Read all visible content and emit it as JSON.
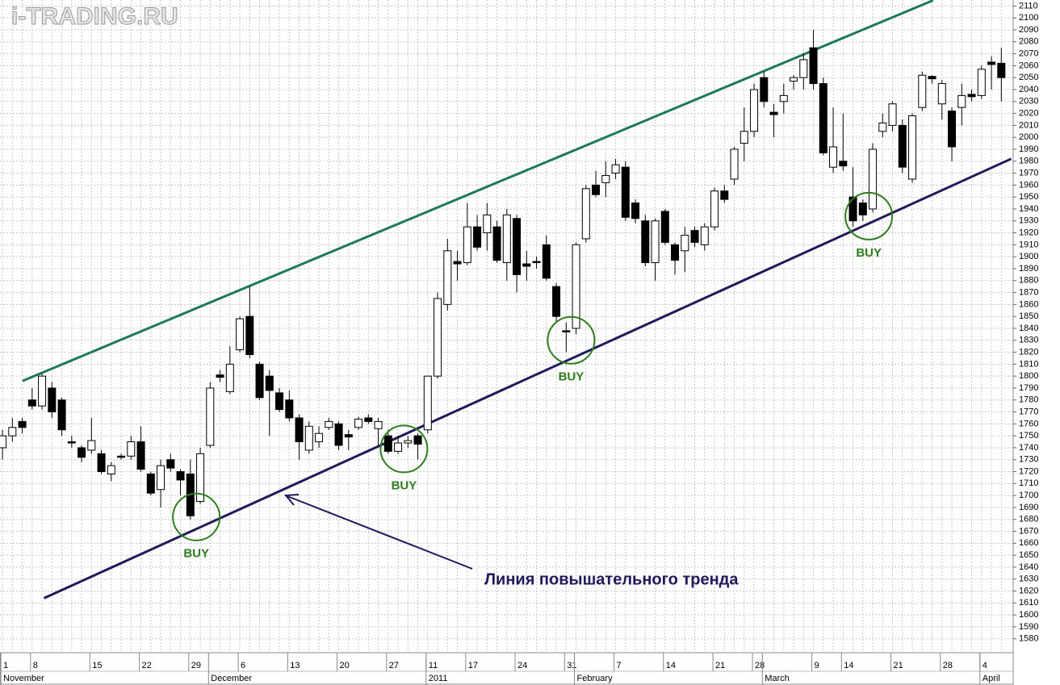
{
  "watermark": "i-TRADING.RU",
  "chart_data": {
    "type": "candlestick",
    "open": [
      1740,
      1750,
      1762,
      1780,
      1775,
      1790,
      1780,
      1745,
      1740,
      1738,
      1735,
      1718,
      1733,
      1733,
      1745,
      1718,
      1705,
      1730,
      1720,
      1718,
      1695,
      1742,
      1801,
      1787,
      1822,
      1850,
      1810,
      1800,
      1786,
      1780,
      1765,
      1738,
      1745,
      1757,
      1760,
      1751,
      1757,
      1765,
      1756,
      1750,
      1737,
      1744,
      1750,
      1755,
      1800,
      1860,
      1896,
      1895,
      1925,
      1920,
      1925,
      1895,
      1932,
      1894,
      1896,
      1910,
      1875,
      1838,
      1840,
      1915,
      1960,
      1962,
      1970,
      1975,
      1945,
      1930,
      1895,
      1938,
      1910,
      1905,
      1922,
      1910,
      1925,
      1955,
      1965,
      1995,
      2005,
      2050,
      2021,
      2030,
      2047,
      2050,
      2075,
      2045,
      1975,
      1980,
      1950,
      1945,
      1940,
      2005,
      2010,
      2010,
      1965,
      2025,
      2051,
      2028,
      2022,
      2025,
      2036,
      2035,
      2063,
      2062
    ],
    "high": [
      1755,
      1765,
      1765,
      1790,
      1802,
      1795,
      1782,
      1750,
      1742,
      1765,
      1738,
      1728,
      1735,
      1750,
      1758,
      1720,
      1730,
      1735,
      1722,
      1730,
      1740,
      1795,
      1805,
      1825,
      1850,
      1875,
      1812,
      1805,
      1790,
      1788,
      1768,
      1762,
      1758,
      1765,
      1762,
      1755,
      1766,
      1768,
      1765,
      1755,
      1750,
      1750,
      1752,
      1800,
      1870,
      1915,
      1905,
      1945,
      1935,
      1945,
      1930,
      1940,
      1935,
      1905,
      1900,
      1918,
      1878,
      1845,
      1912,
      1960,
      1972,
      1980,
      1982,
      1980,
      1948,
      1935,
      1932,
      1940,
      1912,
      1925,
      1925,
      1928,
      1958,
      1960,
      1992,
      2025,
      2045,
      2055,
      2028,
      2045,
      2052,
      2070,
      2090,
      2050,
      2025,
      2020,
      1975,
      1948,
      1995,
      2020,
      2030,
      2015,
      2020,
      2055,
      2052,
      2048,
      2025,
      2045,
      2040,
      2060,
      2068,
      2075
    ],
    "low": [
      1730,
      1745,
      1752,
      1772,
      1772,
      1765,
      1750,
      1740,
      1728,
      1735,
      1718,
      1712,
      1730,
      1730,
      1720,
      1700,
      1690,
      1720,
      1700,
      1680,
      1693,
      1740,
      1795,
      1785,
      1820,
      1815,
      1780,
      1750,
      1770,
      1762,
      1730,
      1735,
      1740,
      1755,
      1738,
      1738,
      1755,
      1760,
      1742,
      1735,
      1735,
      1740,
      1730,
      1752,
      1798,
      1855,
      1880,
      1893,
      1905,
      1905,
      1895,
      1880,
      1870,
      1880,
      1890,
      1880,
      1845,
      1820,
      1835,
      1912,
      1950,
      1950,
      1965,
      1930,
      1928,
      1892,
      1880,
      1910,
      1885,
      1887,
      1908,
      1905,
      1922,
      1945,
      1960,
      1980,
      2000,
      2025,
      2000,
      2020,
      2040,
      2040,
      2040,
      1985,
      1970,
      1972,
      1925,
      1930,
      1937,
      2000,
      2005,
      1970,
      1962,
      2022,
      2045,
      2015,
      1980,
      2010,
      2030,
      2032,
      2040,
      2030
    ],
    "close": [
      1750,
      1757,
      1757,
      1775,
      1800,
      1770,
      1755,
      1744,
      1732,
      1746,
      1720,
      1725,
      1732,
      1745,
      1722,
      1702,
      1725,
      1723,
      1713,
      1683,
      1735,
      1790,
      1799,
      1810,
      1848,
      1818,
      1782,
      1788,
      1772,
      1765,
      1745,
      1758,
      1752,
      1762,
      1742,
      1749,
      1764,
      1762,
      1762,
      1737,
      1744,
      1746,
      1743,
      1800,
      1865,
      1905,
      1894,
      1925,
      1908,
      1935,
      1897,
      1935,
      1885,
      1892,
      1895,
      1882,
      1850,
      1837,
      1910,
      1957,
      1952,
      1968,
      1977,
      1933,
      1932,
      1895,
      1930,
      1912,
      1897,
      1918,
      1912,
      1925,
      1955,
      1948,
      1990,
      2005,
      2040,
      2030,
      2019,
      2035,
      2050,
      2065,
      2045,
      1987,
      1992,
      1976,
      1930,
      1935,
      1990,
      2012,
      2028,
      1975,
      2018,
      2052,
      2049,
      2045,
      1992,
      2035,
      2034,
      2057,
      2061,
      2050
    ],
    "xlim": [
      -0.25,
      102.2
    ],
    "ylim": [
      1569,
      2115
    ],
    "yticks": [
      1580,
      1590,
      1600,
      1610,
      1620,
      1630,
      1640,
      1650,
      1660,
      1670,
      1680,
      1690,
      1700,
      1710,
      1720,
      1730,
      1740,
      1750,
      1760,
      1770,
      1780,
      1790,
      1800,
      1810,
      1820,
      1830,
      1840,
      1850,
      1860,
      1870,
      1880,
      1890,
      1900,
      1910,
      1920,
      1930,
      1940,
      1950,
      1960,
      1970,
      1980,
      1990,
      2000,
      2010,
      2020,
      2030,
      2040,
      2050,
      2060,
      2070,
      2080,
      2090,
      2100,
      2110
    ],
    "xticks": [
      {
        "value": 0,
        "label": "1"
      },
      {
        "value": 3,
        "label": "8"
      },
      {
        "value": 9,
        "label": "15"
      },
      {
        "value": 14,
        "label": "22"
      },
      {
        "value": 19,
        "label": "29"
      },
      {
        "value": 24,
        "label": "6"
      },
      {
        "value": 29,
        "label": "13"
      },
      {
        "value": 34,
        "label": "20"
      },
      {
        "value": 39,
        "label": "27"
      },
      {
        "value": 43,
        "label": "11"
      },
      {
        "value": 47,
        "label": "17"
      },
      {
        "value": 52,
        "label": "24"
      },
      {
        "value": 57,
        "label": "31"
      },
      {
        "value": 62,
        "label": "7"
      },
      {
        "value": 67,
        "label": "14"
      },
      {
        "value": 72,
        "label": "21"
      },
      {
        "value": 76,
        "label": "28"
      },
      {
        "value": 82,
        "label": "9"
      },
      {
        "value": 85,
        "label": "14"
      },
      {
        "value": 90,
        "label": "21"
      },
      {
        "value": 95,
        "label": "28"
      },
      {
        "value": 99,
        "label": "4"
      }
    ],
    "month_ticks": [
      {
        "value": 0,
        "label": "November"
      },
      {
        "value": 21,
        "label": "December"
      },
      {
        "value": 43,
        "label": "2011"
      },
      {
        "value": 58,
        "label": "February"
      },
      {
        "value": 77,
        "label": "March"
      },
      {
        "value": 99,
        "label": "April"
      }
    ],
    "trendlines": [
      {
        "color": "#1e7a55",
        "points": [
          [
            2.03,
            1796
          ],
          [
            94.1,
            2114.7
          ]
        ]
      },
      {
        "color": "#1f1a5c",
        "points": [
          [
            4.2,
            1614
          ],
          [
            102,
            1982
          ]
        ]
      }
    ],
    "signals": [
      {
        "x": 19.6,
        "value": 1682,
        "label": "BUY"
      },
      {
        "x": 40.6,
        "value": 1739,
        "label": "BUY"
      },
      {
        "x": 57.5,
        "value": 1830,
        "label": "BUY"
      },
      {
        "x": 87.6,
        "value": 1934,
        "label": "BUY"
      }
    ],
    "signal_color": "#2e7d1e",
    "annotation": "Линия повышательного тренда",
    "grid": true
  }
}
